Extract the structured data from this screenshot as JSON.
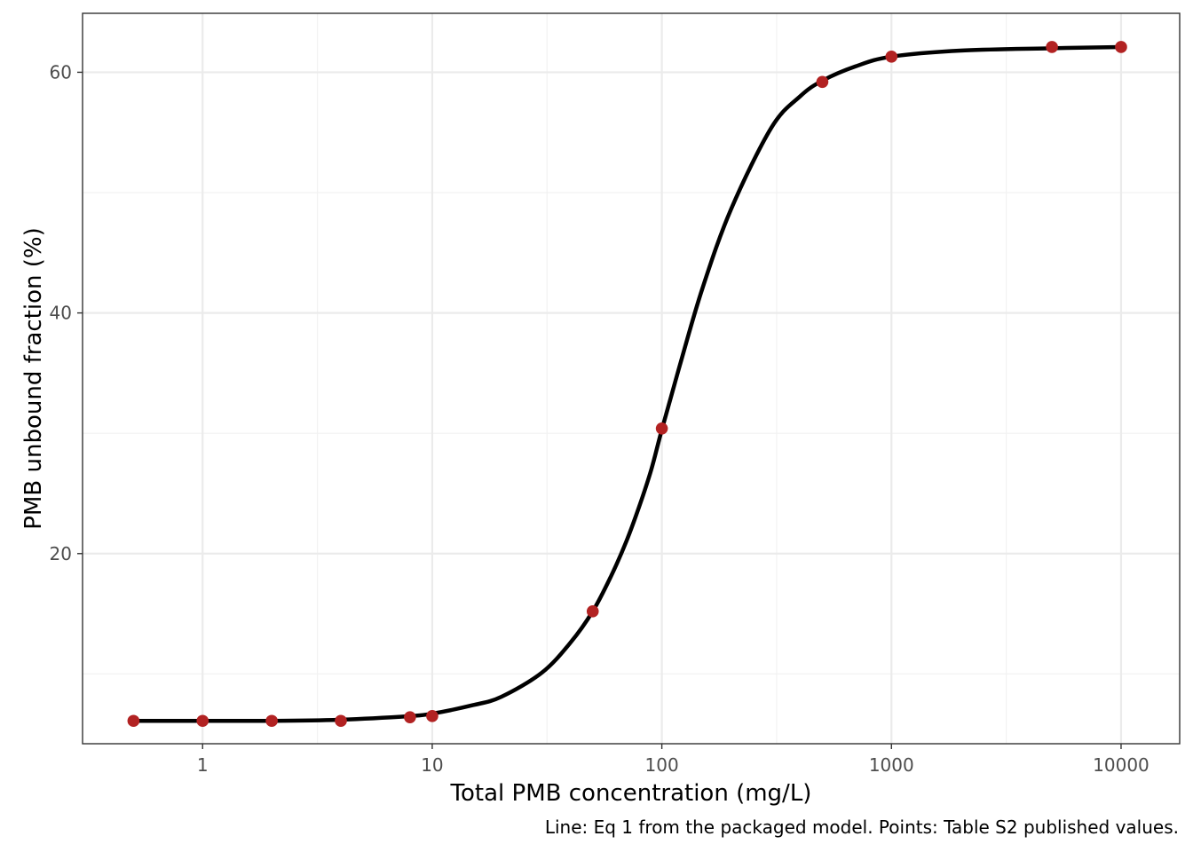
{
  "chart_data": {
    "type": "scatter",
    "title": "",
    "xlabel": "Total PMB concentration (mg/L)",
    "ylabel": "PMB unbound fraction (%)",
    "caption": "Line: Eq 1 from the packaged model. Points: Table S2 published values.",
    "x_scale": "log10",
    "xlim": [
      0.3,
      18000
    ],
    "ylim": [
      4.2,
      64.9
    ],
    "x_ticks": [
      1,
      10,
      100,
      1000,
      10000
    ],
    "x_tick_labels": [
      "1",
      "10",
      "100",
      "1000",
      "10000"
    ],
    "y_ticks": [
      20,
      40,
      60
    ],
    "y_tick_labels": [
      "20",
      "40",
      "60"
    ],
    "grid": true,
    "legend": "none",
    "series": [
      {
        "type": "line",
        "color": "#000000",
        "x": [
          0.5,
          1,
          2,
          4,
          8,
          10,
          15,
          20,
          30,
          40,
          50,
          60,
          70,
          80,
          90,
          100,
          120,
          150,
          200,
          300,
          400,
          500,
          700,
          1000,
          2000,
          5000,
          10000
        ],
        "y": [
          6.1,
          6.1,
          6.1,
          6.2,
          6.5,
          6.7,
          7.4,
          8.1,
          10.1,
          12.6,
          15.2,
          18.1,
          21.0,
          24.0,
          27.0,
          30.3,
          35.7,
          42.0,
          48.6,
          55.4,
          58.0,
          59.3,
          60.5,
          61.3,
          61.8,
          62.0,
          62.1
        ]
      },
      {
        "type": "scatter",
        "color": "#b22222",
        "x": [
          0.5,
          1,
          2,
          4,
          8,
          10,
          50,
          100,
          500,
          1000,
          5000,
          10000
        ],
        "y": [
          6.1,
          6.1,
          6.1,
          6.1,
          6.4,
          6.5,
          15.2,
          30.4,
          59.2,
          61.3,
          62.1,
          62.1
        ]
      }
    ]
  }
}
